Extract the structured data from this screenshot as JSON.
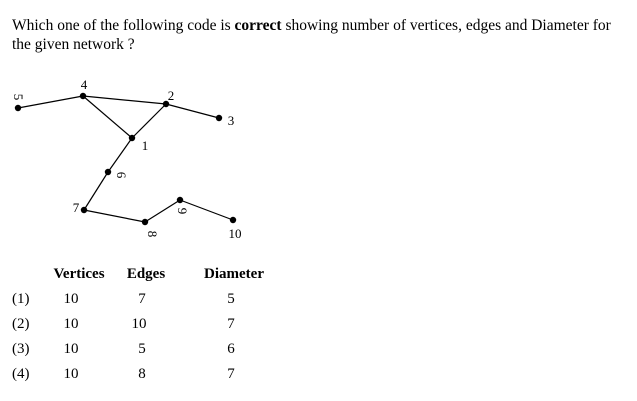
{
  "question": {
    "before": "Which one of the following code is ",
    "bold": "correct",
    "after": " showing number of vertices, edges and Diameter for the given network ?"
  },
  "graph": {
    "nodes": [
      {
        "id": "1",
        "label": "1"
      },
      {
        "id": "2",
        "label": "2"
      },
      {
        "id": "3",
        "label": "3"
      },
      {
        "id": "4",
        "label": "4"
      },
      {
        "id": "5",
        "label": "5"
      },
      {
        "id": "6",
        "label": "6"
      },
      {
        "id": "7",
        "label": "7"
      },
      {
        "id": "8",
        "label": "8"
      },
      {
        "id": "9",
        "label": "9"
      },
      {
        "id": "10",
        "label": "10"
      }
    ],
    "edges": [
      [
        "5",
        "4"
      ],
      [
        "4",
        "2"
      ],
      [
        "2",
        "3"
      ],
      [
        "4",
        "1"
      ],
      [
        "1",
        "2"
      ],
      [
        "1",
        "6"
      ],
      [
        "6",
        "7"
      ],
      [
        "7",
        "8"
      ],
      [
        "8",
        "9"
      ],
      [
        "9",
        "10"
      ]
    ]
  },
  "table": {
    "headers": {
      "vertices": "Vertices",
      "edges": "Edges",
      "diameter": "Diameter"
    },
    "rows": [
      {
        "label": "(1)",
        "vertices": "10",
        "edges": "7",
        "diameter": "5"
      },
      {
        "label": "(2)",
        "vertices": "10",
        "edges": "10",
        "diameter": "7"
      },
      {
        "label": "(3)",
        "vertices": "10",
        "edges": "5",
        "diameter": "6"
      },
      {
        "label": "(4)",
        "vertices": "10",
        "edges": "8",
        "diameter": "7"
      }
    ]
  }
}
